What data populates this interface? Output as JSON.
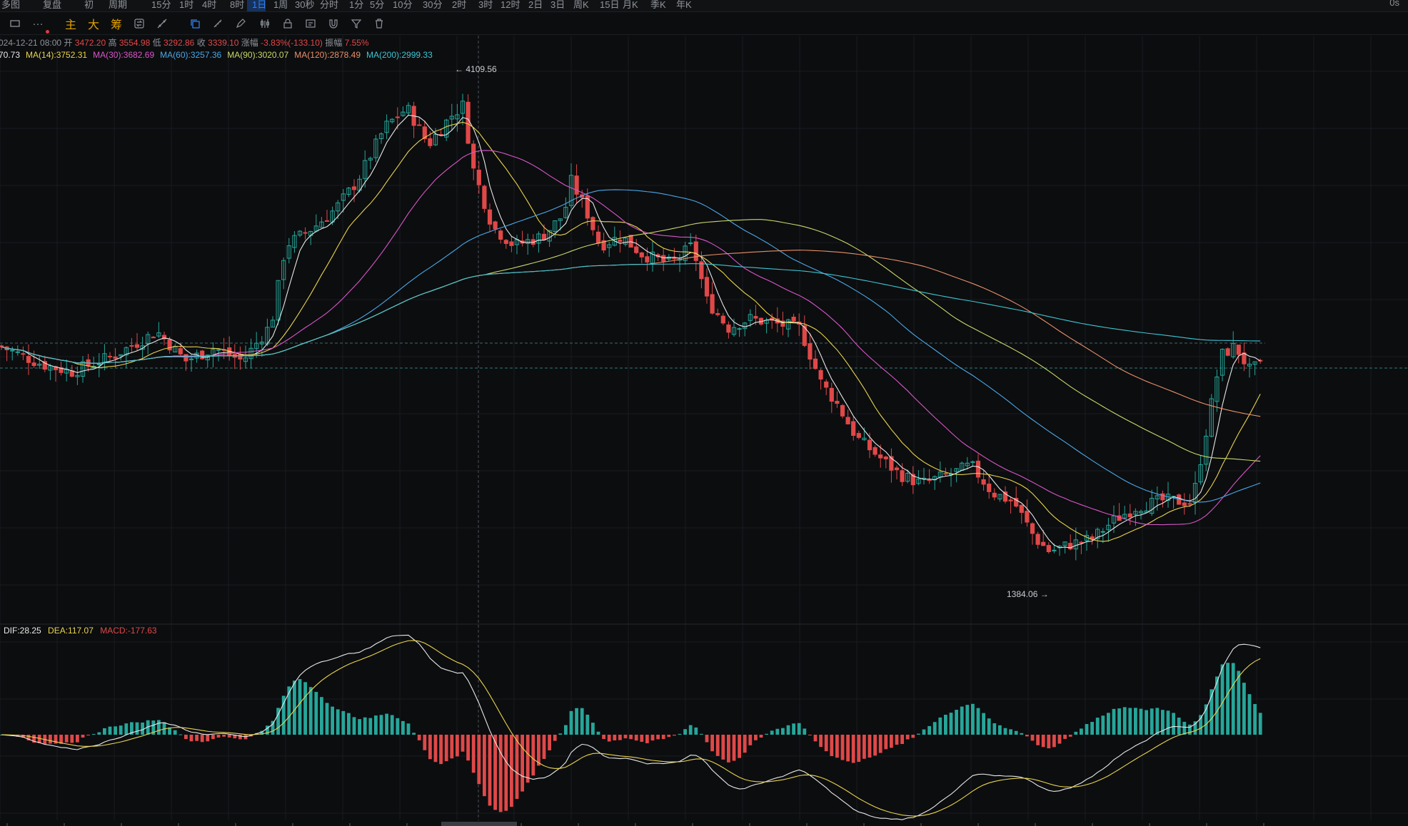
{
  "topbar": {
    "items": [
      "多图",
      "复盘",
      "初",
      "周期",
      "15分",
      "1时",
      "4时",
      "8时",
      "1日",
      "1周",
      "30秒",
      "分时",
      "1分",
      "5分",
      "10分",
      "30分",
      "2时",
      "3时",
      "12时",
      "2日",
      "3日",
      "周K",
      "15日",
      "月K",
      "季K",
      "年K"
    ],
    "active": "1日",
    "right": "0s"
  },
  "toolbar": {
    "cn_main": "主",
    "cn_big": "大",
    "cn_chip": "筹"
  },
  "ohlc": {
    "date": "024-12-21 08:00",
    "open_label": "开",
    "open": "3472.20",
    "high_label": "高",
    "high": "3554.98",
    "low_label": "低",
    "low": "3292.86",
    "close_label": "收",
    "close": "3339.10",
    "chg_label": "涨幅",
    "chg": "-3.83%(-133.10)",
    "amp_label": "振幅",
    "amp": "7.55%"
  },
  "ma_legend": [
    {
      "text": "70.73",
      "color": "#e8e8e8"
    },
    {
      "text": "MA(14):3752.31",
      "color": "#e8d44d"
    },
    {
      "text": "MA(30):3682.69",
      "color": "#d957c9"
    },
    {
      "text": "MA(60):3257.36",
      "color": "#4aa8e8"
    },
    {
      "text": "MA(90):3020.07",
      "color": "#c8d86a"
    },
    {
      "text": "MA(120):2878.49",
      "color": "#e8906a"
    },
    {
      "text": "MA(200):2999.33",
      "color": "#3ec6d2"
    }
  ],
  "annotations": {
    "high_mark": "4109.56",
    "low_mark": "1384.06"
  },
  "macd": {
    "dif": "DIF:28.25",
    "dea": "DEA:117.07",
    "macd": "MACD:-177.63",
    "dif_color": "#e8e8e8",
    "dea_color": "#e8d44d",
    "macd_color": "#e04848"
  },
  "colors": {
    "up": "#26a69a",
    "down": "#e04848",
    "bg": "#0c0d0f",
    "grid": "#1a1c20"
  }
}
